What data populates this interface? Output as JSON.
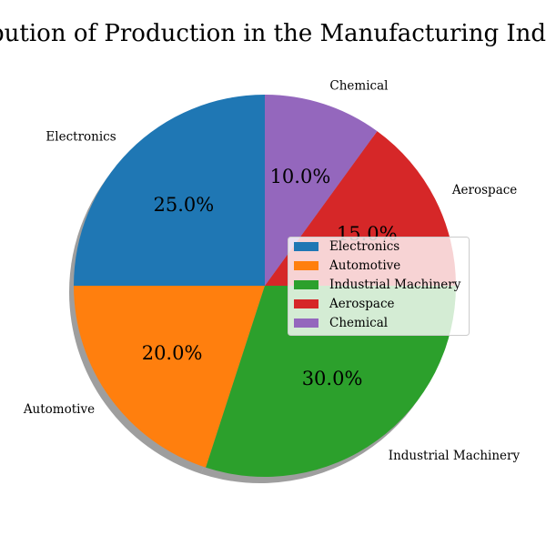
{
  "chart_data": {
    "type": "pie",
    "title": "Distribution of Production in the Manufacturing Industry",
    "categories": [
      "Electronics",
      "Automotive",
      "Industrial Machinery",
      "Aerospace",
      "Chemical"
    ],
    "values": [
      25.0,
      20.0,
      30.0,
      15.0,
      10.0
    ],
    "value_labels": [
      "25.0%",
      "20.0%",
      "30.0%",
      "15.0%",
      "10.0%"
    ],
    "colors": [
      "#1f77b4",
      "#ff7f0e",
      "#2ca02c",
      "#d62728",
      "#9467bd"
    ],
    "start_angle": 90,
    "direction": "counterclockwise",
    "shadow": true,
    "legend": {
      "placement": "center-right",
      "entries": [
        "Electronics",
        "Automotive",
        "Industrial Machinery",
        "Aerospace",
        "Chemical"
      ]
    }
  }
}
